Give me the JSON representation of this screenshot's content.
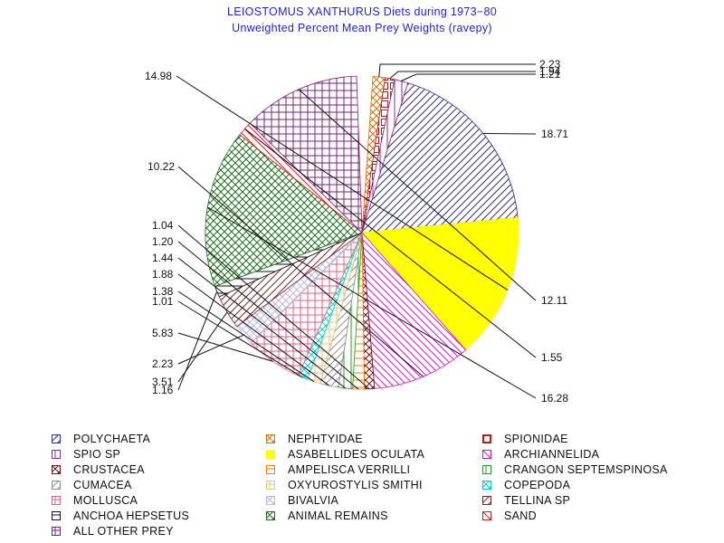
{
  "chart_data": {
    "type": "pie",
    "title": "LEIOSTOMUS XANTHURUS Diets during 1973−80",
    "subtitle": "Unweighted Percent Mean Prey Weights (ravepy)",
    "slices": [
      {
        "name": "POLYCHAETA",
        "value": 18.71,
        "label": "18.71",
        "color": "#2a2aa8",
        "pattern": "hatch-ne"
      },
      {
        "name": "NEPHTYIDAE",
        "value": 0,
        "label": "",
        "color": "#d07010",
        "pattern": "cross-diag"
      },
      {
        "name": "SPIONIDAE",
        "value": 0,
        "label": "",
        "color": "#c01818",
        "pattern": "square"
      },
      {
        "name": "SPIO SP",
        "value": 0,
        "label": "",
        "color": "#8a2a8a",
        "pattern": "vlines"
      },
      {
        "name": "ASABELLIDES OCULATA",
        "value": 14.98,
        "label": "14.98",
        "color": "#ffff00",
        "pattern": "solid"
      },
      {
        "name": "ARCHIANNELIDA",
        "value": 10.22,
        "label": "10.22",
        "color": "#c020c0",
        "pattern": "hatch-nw"
      },
      {
        "name": "CRUSTACEA",
        "value": 1.04,
        "label": "1.04",
        "color": "#7a1010",
        "pattern": "cross-diag"
      },
      {
        "name": "AMPELISCA VERRILLI",
        "value": 1.2,
        "label": "1.20",
        "color": "#f08000",
        "pattern": "hlines"
      },
      {
        "name": "CRANGON SEPTEMSPINOSA",
        "value": 1.44,
        "label": "1.44",
        "color": "#20a020",
        "pattern": "vlines"
      },
      {
        "name": "CUMACEA",
        "value": 1.88,
        "label": "1.88",
        "color": "#909090",
        "pattern": "hatch-ne"
      },
      {
        "name": "OXYUROSTYLIS SMITHI",
        "value": 1.38,
        "label": "1.38",
        "color": "#e0c870",
        "pattern": "grid"
      },
      {
        "name": "COPEPODA",
        "value": 1.01,
        "label": "1.01",
        "color": "#00d0d0",
        "pattern": "cross-diag"
      },
      {
        "name": "MOLLUSCA",
        "value": 5.83,
        "label": "5.83",
        "color": "#e06080",
        "pattern": "grid"
      },
      {
        "name": "BIVALVIA",
        "value": 2.23,
        "label": "2.23",
        "color": "#b8b8e0",
        "pattern": "cross-diag"
      },
      {
        "name": "TELLINA SP",
        "value": 3.51,
        "label": "3.51",
        "color": "#8a2020",
        "pattern": "hatch-ne"
      },
      {
        "name": "ANCHOA HEPSETUS",
        "value": 1.16,
        "label": "1.16",
        "color": "#101010",
        "pattern": "hlines"
      },
      {
        "name": "ANIMAL REMAINS",
        "value": 16.28,
        "label": "16.28",
        "color": "#207020",
        "pattern": "cross-diag"
      },
      {
        "name": "SAND",
        "value": 1.55,
        "label": "1.55",
        "color": "#d02020",
        "pattern": "hatch-nw"
      },
      {
        "name": "ALL OTHER PREY",
        "value": 12.11,
        "label": "12.11",
        "color": "#7a207a",
        "pattern": "grid"
      }
    ],
    "top_labels": [
      "2.23",
      "1.94",
      "1.21"
    ],
    "legend_position": "bottom"
  }
}
